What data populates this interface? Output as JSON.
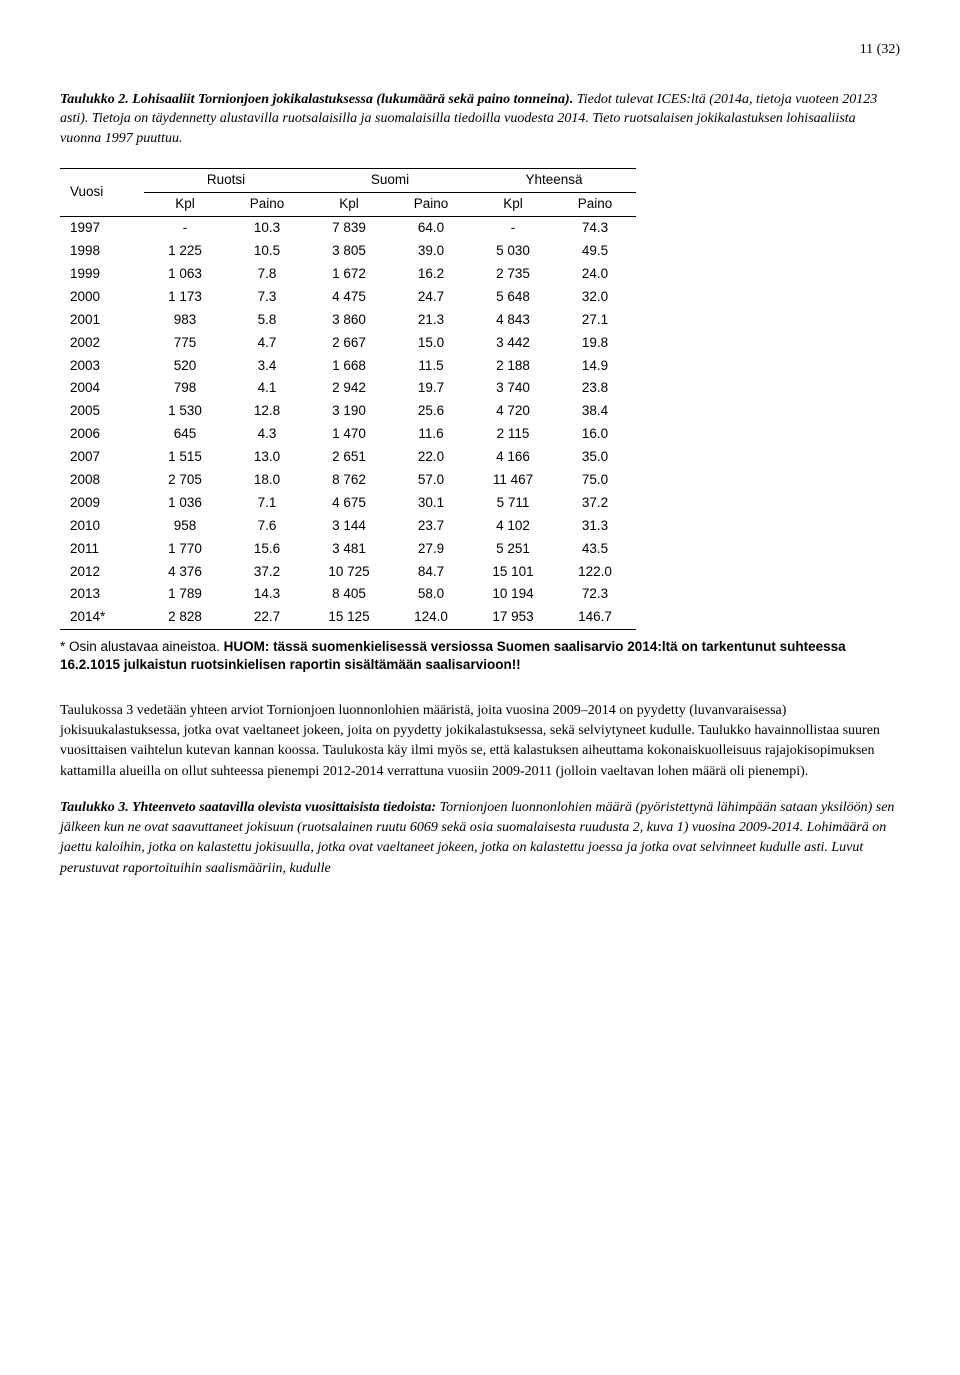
{
  "page_number": "11 (32)",
  "caption1": {
    "lead": "Taulukko 2. Lohisaaliit Tornionjoen jokikalastuksessa (lukumäärä sekä paino tonneina).",
    "rest": " Tiedot tulevat ICES:ltä (2014a, tietoja vuoteen 20123 asti). Tietoja on täydennetty alustavilla ruotsalaisilla ja suomalaisilla tiedoilla vuodesta 2014. Tieto ruotsalaisen jokikalastuksen lohisaaliista vuonna 1997 puuttuu."
  },
  "table": {
    "row_header": "Vuosi",
    "group_headers": [
      "Ruotsi",
      "Suomi",
      "Yhteensä"
    ],
    "sub_headers": [
      "Kpl",
      "Paino",
      "Kpl",
      "Paino",
      "Kpl",
      "Paino"
    ],
    "rows": [
      {
        "year": "1997",
        "cells": [
          "-",
          "10.3",
          "7 839",
          "64.0",
          "-",
          "74.3"
        ]
      },
      {
        "year": "1998",
        "cells": [
          "1 225",
          "10.5",
          "3 805",
          "39.0",
          "5 030",
          "49.5"
        ]
      },
      {
        "year": "1999",
        "cells": [
          "1 063",
          "7.8",
          "1 672",
          "16.2",
          "2 735",
          "24.0"
        ]
      },
      {
        "year": "2000",
        "cells": [
          "1 173",
          "7.3",
          "4 475",
          "24.7",
          "5 648",
          "32.0"
        ]
      },
      {
        "year": "2001",
        "cells": [
          "983",
          "5.8",
          "3 860",
          "21.3",
          "4 843",
          "27.1"
        ]
      },
      {
        "year": "2002",
        "cells": [
          "775",
          "4.7",
          "2 667",
          "15.0",
          "3 442",
          "19.8"
        ]
      },
      {
        "year": "2003",
        "cells": [
          "520",
          "3.4",
          "1 668",
          "11.5",
          "2 188",
          "14.9"
        ]
      },
      {
        "year": "2004",
        "cells": [
          "798",
          "4.1",
          "2 942",
          "19.7",
          "3 740",
          "23.8"
        ]
      },
      {
        "year": "2005",
        "cells": [
          "1 530",
          "12.8",
          "3 190",
          "25.6",
          "4 720",
          "38.4"
        ]
      },
      {
        "year": "2006",
        "cells": [
          "645",
          "4.3",
          "1 470",
          "11.6",
          "2 115",
          "16.0"
        ]
      },
      {
        "year": "2007",
        "cells": [
          "1 515",
          "13.0",
          "2 651",
          "22.0",
          "4 166",
          "35.0"
        ]
      },
      {
        "year": "2008",
        "cells": [
          "2 705",
          "18.0",
          "8 762",
          "57.0",
          "11 467",
          "75.0"
        ]
      },
      {
        "year": "2009",
        "cells": [
          "1 036",
          "7.1",
          "4 675",
          "30.1",
          "5 711",
          "37.2"
        ]
      },
      {
        "year": "2010",
        "cells": [
          "958",
          "7.6",
          "3 144",
          "23.7",
          "4 102",
          "31.3"
        ]
      },
      {
        "year": "2011",
        "cells": [
          "1 770",
          "15.6",
          "3 481",
          "27.9",
          "5 251",
          "43.5"
        ]
      },
      {
        "year": "2012",
        "cells": [
          "4 376",
          "37.2",
          "10 725",
          "84.7",
          "15 101",
          "122.0"
        ]
      },
      {
        "year": "2013",
        "cells": [
          "1 789",
          "14.3",
          "8 405",
          "58.0",
          "10 194",
          "72.3"
        ]
      },
      {
        "year": "2014*",
        "cells": [
          "2 828",
          "22.7",
          "15 125",
          "124.0",
          "17 953",
          "146.7"
        ]
      }
    ]
  },
  "footnote": {
    "plain": "* Osin alustavaa aineistoa. ",
    "bold": "HUOM: tässä suomenkielisessä versiossa Suomen saalisarvio 2014:ltä on tarkentunut suhteessa 16.2.1015 julkaistun ruotsinkielisen raportin sisältämään saalisarvioon!!"
  },
  "body": "Taulukossa 3 vedetään yhteen arviot Tornionjoen luonnonlohien määristä, joita vuosina 2009–2014 on pyydetty (luvanvaraisessa) jokisuukalastuksessa, jotka ovat vaeltaneet jokeen, joita on pyydetty jokikalastuksessa, sekä selviytyneet kudulle. Taulukko havainnollistaa suuren vuosittaisen vaihtelun kutevan kannan koossa. Taulukosta käy ilmi myös se, että kalastuksen aiheuttama kokonaiskuolleisuus rajajokisopimuksen kattamilla alueilla on ollut suhteessa pienempi 2012-2014 verrattuna vuosiin 2009-2011 (jolloin vaeltavan lohen määrä oli pienempi).",
  "caption2": {
    "lead": "Taulukko 3. Yhteenveto saatavilla olevista vuosittaisista tiedoista:",
    "rest": " Tornionjoen luonnonlohien määrä (pyöristettynä lähimpään sataan yksilöön) sen jälkeen kun ne ovat saavuttaneet jokisuun (ruotsalainen ruutu 6069 sekä osia suomalaisesta ruudusta 2, kuva 1) vuosina 2009-2014. Lohimäärä on jaettu kaloihin, jotka on kalastettu jokisuulla, jotka ovat vaeltaneet jokeen, jotka on kalastettu joessa ja jotka ovat selvinneet kudulle asti. Luvut perustuvat raportoituihin saalismääriin, kudulle"
  }
}
